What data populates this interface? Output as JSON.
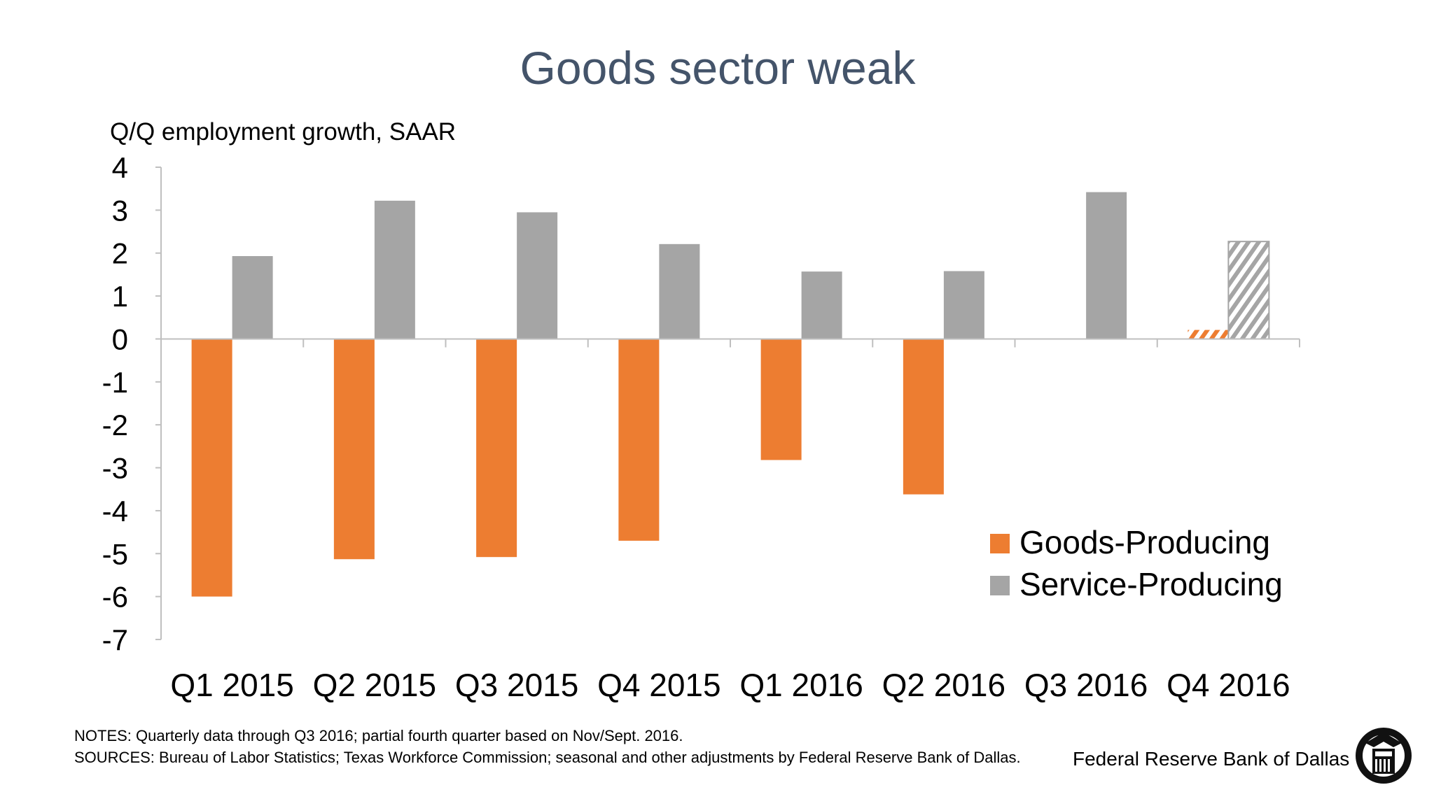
{
  "chart_data": {
    "type": "bar",
    "title": "Goods sector weak",
    "ylabel": "Q/Q employment growth, SAAR",
    "xlabel": "",
    "ylim": [
      -7,
      4
    ],
    "yticks": [
      "4",
      "3",
      "2",
      "1",
      "0",
      "-1",
      "-2",
      "-3",
      "-4",
      "-5",
      "-6",
      "-7"
    ],
    "grid": false,
    "legend_position": "bottom-right",
    "categories": [
      "Q1 2015",
      "Q2 2015",
      "Q3 2015",
      "Q4 2015",
      "Q1 2016",
      "Q2 2016",
      "Q3 2016",
      "Q4 2016"
    ],
    "series": [
      {
        "name": "Goods-Producing",
        "color": "#ed7d31",
        "values": [
          -6.0,
          -5.13,
          -5.08,
          -4.7,
          -2.82,
          -3.62,
          0.0,
          0.21
        ],
        "partial_hatched": [
          false,
          false,
          false,
          false,
          false,
          false,
          false,
          true
        ]
      },
      {
        "name": "Service-Producing",
        "color": "#a5a5a5",
        "values": [
          1.93,
          3.22,
          2.95,
          2.21,
          1.57,
          1.58,
          3.42,
          2.27
        ],
        "partial_hatched": [
          false,
          false,
          false,
          false,
          false,
          false,
          false,
          true
        ]
      }
    ]
  },
  "footer": {
    "notes": "NOTES: Quarterly data through Q3 2016; partial fourth quarter based on Nov/Sept. 2016.",
    "sources": "SOURCES: Bureau of Labor Statistics; Texas Workforce Commission; seasonal and other adjustments by Federal Reserve Bank of Dallas.",
    "brand": "Federal Reserve Bank of Dallas",
    "logo_icon": "federal-reserve-eagle-seal-icon"
  },
  "colors": {
    "title": "#44546a",
    "axis": "#bfbfbf",
    "text": "#000000"
  }
}
